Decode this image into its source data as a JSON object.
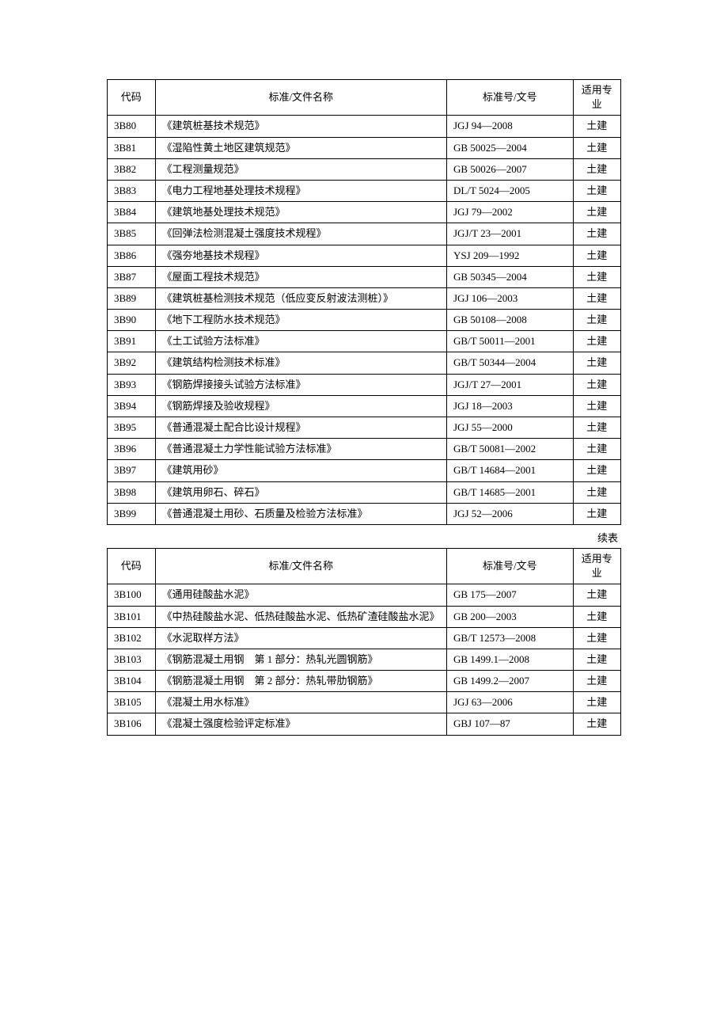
{
  "headers": {
    "code": "代码",
    "name": "标准/文件名称",
    "num": "标准号/文号",
    "spec": "适用专业"
  },
  "continued_label": "续表",
  "table1": {
    "rows": [
      {
        "code": "3B80",
        "name": "《建筑桩基技术规范》",
        "num": "JGJ 94—2008",
        "spec": "土建"
      },
      {
        "code": "3B81",
        "name": "《湿陷性黄土地区建筑规范》",
        "num": "GB 50025—2004",
        "spec": "土建"
      },
      {
        "code": "3B82",
        "name": "《工程测量规范》",
        "num": "GB 50026—2007",
        "spec": "土建"
      },
      {
        "code": "3B83",
        "name": "《电力工程地基处理技术规程》",
        "num": "DL/T 5024—2005",
        "spec": "土建"
      },
      {
        "code": "3B84",
        "name": "《建筑地基处理技术规范》",
        "num": "JGJ 79—2002",
        "spec": "土建"
      },
      {
        "code": "3B85",
        "name": "《回弹法检测混凝土强度技术规程》",
        "num": "JGJ/T 23—2001",
        "spec": "土建"
      },
      {
        "code": "3B86",
        "name": "《强夯地基技术规程》",
        "num": "YSJ 209—1992",
        "spec": "土建"
      },
      {
        "code": "3B87",
        "name": "《屋面工程技术规范》",
        "num": "GB 50345—2004",
        "spec": "土建"
      },
      {
        "code": "3B89",
        "name": "《建筑桩基检测技术规范（低应变反射波法测桩）》",
        "num": "JGJ 106—2003",
        "spec": "土建"
      },
      {
        "code": "3B90",
        "name": "《地下工程防水技术规范》",
        "num": "GB 50108—2008",
        "spec": "土建"
      },
      {
        "code": "3B91",
        "name": "《土工试验方法标准》",
        "num": "GB/T 50011—2001",
        "spec": "土建"
      },
      {
        "code": "3B92",
        "name": "《建筑结构检测技术标准》",
        "num": "GB/T 50344—2004",
        "spec": "土建"
      },
      {
        "code": "3B93",
        "name": "《钢筋焊接接头试验方法标准》",
        "num": "JGJ/T 27—2001",
        "spec": "土建"
      },
      {
        "code": "3B94",
        "name": "《钢筋焊接及验收规程》",
        "num": "JGJ 18—2003",
        "spec": "土建"
      },
      {
        "code": "3B95",
        "name": "《普通混凝土配合比设计规程》",
        "num": "JGJ 55—2000",
        "spec": "土建"
      },
      {
        "code": "3B96",
        "name": "《普通混凝土力学性能试验方法标准》",
        "num": "GB/T 50081—2002",
        "spec": "土建"
      },
      {
        "code": "3B97",
        "name": "《建筑用砂》",
        "num": "GB/T 14684—2001",
        "spec": "土建"
      },
      {
        "code": "3B98",
        "name": "《建筑用卵石、碎石》",
        "num": "GB/T 14685—2001",
        "spec": "土建"
      },
      {
        "code": "3B99",
        "name": "《普通混凝土用砂、石质量及检验方法标准》",
        "num": "JGJ 52—2006",
        "spec": "土建"
      }
    ]
  },
  "table2": {
    "rows": [
      {
        "code": "3B100",
        "name": "《通用硅酸盐水泥》",
        "num": "GB 175—2007",
        "spec": "土建"
      },
      {
        "code": "3B101",
        "name": "《中热硅酸盐水泥、低热硅酸盐水泥、低热矿渣硅酸盐水泥》",
        "num": "GB 200—2003",
        "spec": "土建"
      },
      {
        "code": "3B102",
        "name": "《水泥取样方法》",
        "num": "GB/T 12573—2008",
        "spec": "土建"
      },
      {
        "code": "3B103",
        "name": "《钢筋混凝土用钢　第 1 部分：热轧光圆钢筋》",
        "num": "GB 1499.1—2008",
        "spec": "土建"
      },
      {
        "code": "3B104",
        "name": "《钢筋混凝土用钢　第 2 部分：热轧带肋钢筋》",
        "num": "GB 1499.2—2007",
        "spec": "土建"
      },
      {
        "code": "3B105",
        "name": "《混凝土用水标准》",
        "num": "JGJ 63—2006",
        "spec": "土建"
      },
      {
        "code": "3B106",
        "name": "《混凝土强度检验评定标准》",
        "num": "GBJ 107—87",
        "spec": "土建"
      }
    ]
  }
}
